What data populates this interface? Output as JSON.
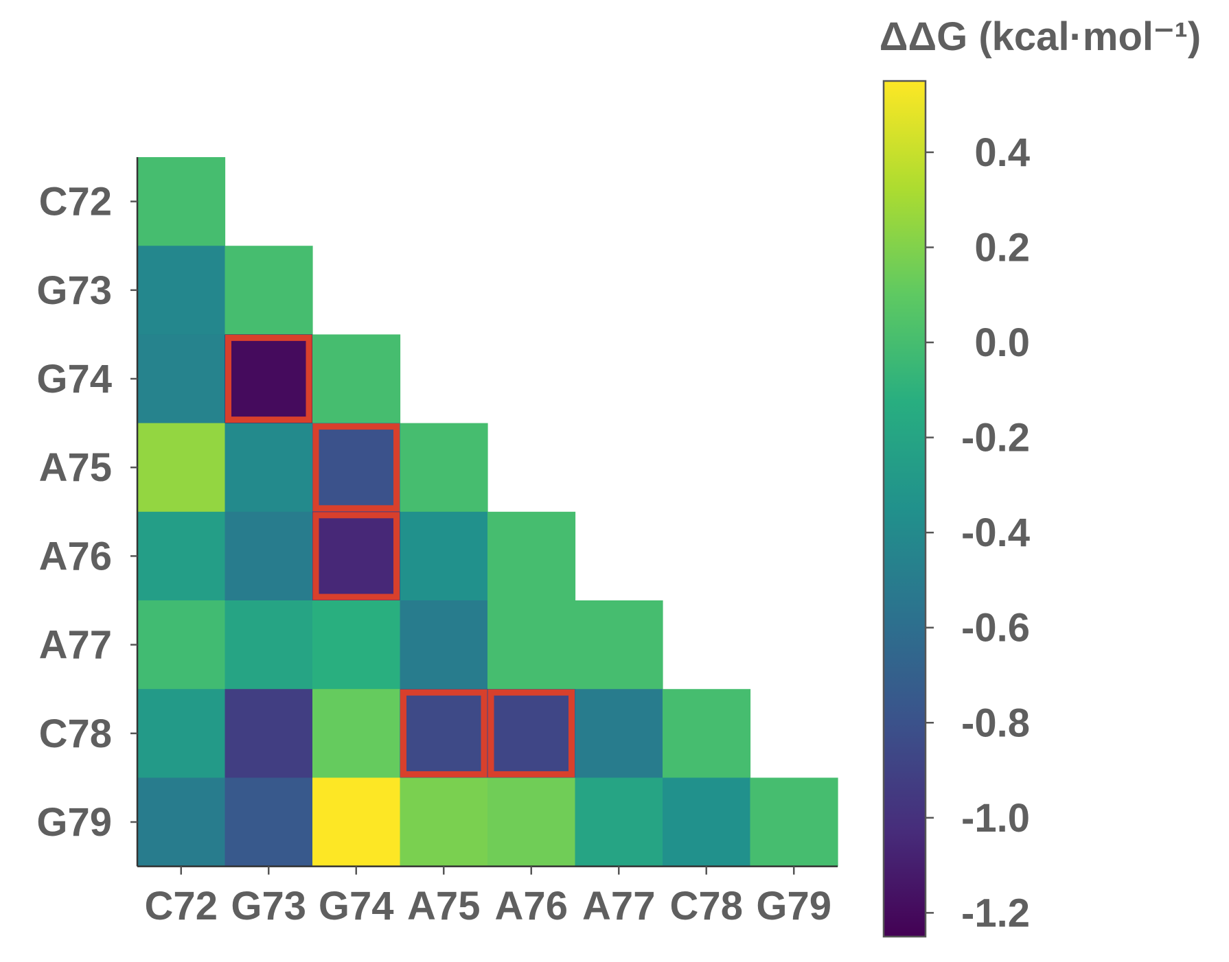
{
  "chart_data": {
    "type": "heatmap",
    "layout": "lower-triangle",
    "residues": [
      "C72",
      "G73",
      "G74",
      "A75",
      "A76",
      "A77",
      "C78",
      "G79"
    ],
    "xticks": [
      "C72",
      "G73",
      "G74",
      "A75",
      "A76",
      "A77",
      "C78",
      "G79"
    ],
    "yticks": [
      "C72",
      "G73",
      "G74",
      "A75",
      "A76",
      "A77",
      "C78",
      "G79"
    ],
    "values": [
      [
        0.0
      ],
      [
        -0.42,
        0.0
      ],
      [
        -0.45,
        -1.2,
        0.0
      ],
      [
        0.25,
        -0.4,
        -0.8,
        0.0
      ],
      [
        -0.25,
        -0.5,
        -1.05,
        -0.35,
        0.0
      ],
      [
        -0.02,
        -0.2,
        -0.12,
        -0.5,
        0.0,
        0.0
      ],
      [
        -0.28,
        -0.92,
        0.12,
        -0.85,
        -0.87,
        -0.5,
        0.0
      ],
      [
        -0.5,
        -0.75,
        0.55,
        0.18,
        0.15,
        -0.2,
        -0.35,
        0.0
      ]
    ],
    "highlighted_cells": [
      [
        2,
        1
      ],
      [
        3,
        2
      ],
      [
        4,
        2
      ],
      [
        6,
        3
      ],
      [
        6,
        4
      ]
    ],
    "highlight_color": "#d8402c",
    "colorbar": {
      "title": "ΔΔG (kcal·mol⁻¹)",
      "colormap": "viridis",
      "min": -1.25,
      "max": 0.55,
      "ticks": [
        0.4,
        0.2,
        0.0,
        -0.2,
        -0.4,
        -0.6,
        -0.8,
        -1.0,
        -1.2
      ],
      "tick_labels": [
        "0.4",
        "0.2",
        "0.0",
        "-0.2",
        "-0.4",
        "-0.6",
        "-0.8",
        "-1.0",
        "-1.2"
      ]
    }
  }
}
